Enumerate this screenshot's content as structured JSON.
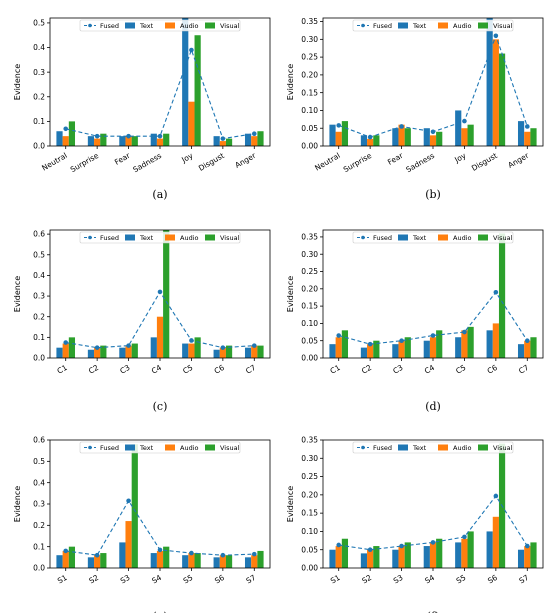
{
  "colors": {
    "Fused": "#1f77b4",
    "Text": "#1f77b4",
    "Audio": "#ff7f0e",
    "Visual": "#2ca02c"
  },
  "chart_data": [
    {
      "type": "bar",
      "panel_label": "(a)",
      "title": "",
      "xlabel": "",
      "ylabel": "Evidence",
      "categories": [
        "Neutral",
        "Surprise",
        "Fear",
        "Sadness",
        "Joy",
        "Disgust",
        "Anger"
      ],
      "ylim": [
        0,
        0.52
      ],
      "yticks": [
        0.0,
        0.1,
        0.2,
        0.3,
        0.4,
        0.5
      ],
      "xtick_rotation": 30,
      "legend": "top",
      "fused_series": "Fused",
      "series": [
        {
          "name": "Fused",
          "style": "line",
          "values": [
            0.07,
            0.04,
            0.04,
            0.04,
            0.39,
            0.03,
            0.05
          ]
        },
        {
          "name": "Text",
          "values": [
            0.06,
            0.04,
            0.04,
            0.05,
            0.52,
            0.04,
            0.05
          ]
        },
        {
          "name": "Audio",
          "values": [
            0.04,
            0.03,
            0.04,
            0.03,
            0.18,
            0.02,
            0.04
          ]
        },
        {
          "name": "Visual",
          "values": [
            0.1,
            0.05,
            0.04,
            0.05,
            0.45,
            0.03,
            0.06
          ]
        }
      ]
    },
    {
      "type": "bar",
      "panel_label": "(b)",
      "title": "",
      "xlabel": "",
      "ylabel": "Evidence",
      "categories": [
        "Neutral",
        "Surprise",
        "Fear",
        "Sadness",
        "Joy",
        "Disgust",
        "Anger"
      ],
      "ylim": [
        0,
        0.36
      ],
      "yticks": [
        0.0,
        0.05,
        0.1,
        0.15,
        0.2,
        0.25,
        0.3,
        0.35
      ],
      "xtick_rotation": 30,
      "legend": "top",
      "fused_series": "Fused",
      "series": [
        {
          "name": "Fused",
          "style": "line",
          "values": [
            0.058,
            0.025,
            0.055,
            0.04,
            0.07,
            0.31,
            0.055
          ]
        },
        {
          "name": "Text",
          "values": [
            0.06,
            0.03,
            0.05,
            0.05,
            0.1,
            0.36,
            0.07
          ]
        },
        {
          "name": "Audio",
          "values": [
            0.04,
            0.02,
            0.06,
            0.03,
            0.05,
            0.3,
            0.04
          ]
        },
        {
          "name": "Visual",
          "values": [
            0.07,
            0.03,
            0.05,
            0.04,
            0.06,
            0.26,
            0.05
          ]
        }
      ]
    },
    {
      "type": "bar",
      "panel_label": "(c)",
      "title": "",
      "xlabel": "",
      "ylabel": "Evidence",
      "categories": [
        "C1",
        "C2",
        "C3",
        "C4",
        "C5",
        "C6",
        "C7"
      ],
      "ylim": [
        0,
        0.62
      ],
      "yticks": [
        0.0,
        0.1,
        0.2,
        0.3,
        0.4,
        0.5,
        0.6
      ],
      "xtick_rotation": 30,
      "legend": "top",
      "fused_series": "Fused",
      "series": [
        {
          "name": "Fused",
          "style": "line",
          "values": [
            0.075,
            0.05,
            0.06,
            0.32,
            0.085,
            0.05,
            0.06
          ]
        },
        {
          "name": "Text",
          "values": [
            0.05,
            0.04,
            0.05,
            0.1,
            0.07,
            0.04,
            0.05
          ]
        },
        {
          "name": "Audio",
          "values": [
            0.07,
            0.05,
            0.06,
            0.2,
            0.07,
            0.05,
            0.06
          ]
        },
        {
          "name": "Visual",
          "values": [
            0.1,
            0.06,
            0.07,
            0.62,
            0.1,
            0.06,
            0.06
          ]
        }
      ]
    },
    {
      "type": "bar",
      "panel_label": "(d)",
      "title": "",
      "xlabel": "",
      "ylabel": "Evidence",
      "categories": [
        "C1",
        "C2",
        "C3",
        "C4",
        "C5",
        "C6",
        "C7"
      ],
      "ylim": [
        0,
        0.37
      ],
      "yticks": [
        0.0,
        0.05,
        0.1,
        0.15,
        0.2,
        0.25,
        0.3,
        0.35
      ],
      "xtick_rotation": 30,
      "legend": "top",
      "fused_series": "Fused",
      "series": [
        {
          "name": "Fused",
          "style": "line",
          "values": [
            0.065,
            0.04,
            0.05,
            0.065,
            0.075,
            0.19,
            0.05
          ]
        },
        {
          "name": "Text",
          "values": [
            0.04,
            0.03,
            0.04,
            0.05,
            0.06,
            0.08,
            0.04
          ]
        },
        {
          "name": "Audio",
          "values": [
            0.06,
            0.04,
            0.05,
            0.06,
            0.08,
            0.1,
            0.05
          ]
        },
        {
          "name": "Visual",
          "values": [
            0.08,
            0.05,
            0.06,
            0.08,
            0.09,
            0.36,
            0.06
          ]
        }
      ]
    },
    {
      "type": "bar",
      "panel_label": "(e)",
      "title": "",
      "xlabel": "",
      "ylabel": "Evidence",
      "categories": [
        "S1",
        "S2",
        "S3",
        "S4",
        "S5",
        "S6",
        "S7"
      ],
      "ylim": [
        0,
        0.6
      ],
      "yticks": [
        0.0,
        0.1,
        0.2,
        0.3,
        0.4,
        0.5,
        0.6
      ],
      "xtick_rotation": 30,
      "legend": "top",
      "fused_series": "Fused",
      "series": [
        {
          "name": "Fused",
          "style": "line",
          "values": [
            0.08,
            0.06,
            0.315,
            0.085,
            0.07,
            0.06,
            0.065
          ]
        },
        {
          "name": "Text",
          "values": [
            0.06,
            0.05,
            0.12,
            0.07,
            0.06,
            0.05,
            0.05
          ]
        },
        {
          "name": "Audio",
          "values": [
            0.08,
            0.06,
            0.22,
            0.08,
            0.07,
            0.06,
            0.06
          ]
        },
        {
          "name": "Visual",
          "values": [
            0.1,
            0.07,
            0.58,
            0.1,
            0.07,
            0.06,
            0.08
          ]
        }
      ]
    },
    {
      "type": "bar",
      "panel_label": "(f)",
      "title": "",
      "xlabel": "",
      "ylabel": "Evidence",
      "categories": [
        "S1",
        "S2",
        "S3",
        "S4",
        "S5",
        "S6",
        "S7"
      ],
      "ylim": [
        0,
        0.35
      ],
      "yticks": [
        0.0,
        0.05,
        0.1,
        0.15,
        0.2,
        0.25,
        0.3,
        0.35
      ],
      "xtick_rotation": 30,
      "legend": "top",
      "fused_series": "Fused",
      "series": [
        {
          "name": "Fused",
          "style": "line",
          "values": [
            0.063,
            0.05,
            0.06,
            0.07,
            0.085,
            0.197,
            0.06
          ]
        },
        {
          "name": "Text",
          "values": [
            0.05,
            0.04,
            0.05,
            0.06,
            0.07,
            0.1,
            0.05
          ]
        },
        {
          "name": "Audio",
          "values": [
            0.06,
            0.05,
            0.06,
            0.07,
            0.08,
            0.14,
            0.06
          ]
        },
        {
          "name": "Visual",
          "values": [
            0.08,
            0.06,
            0.07,
            0.08,
            0.1,
            0.34,
            0.07
          ]
        }
      ]
    }
  ]
}
